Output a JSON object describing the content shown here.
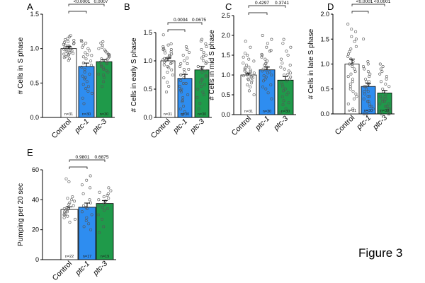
{
  "figure_label": "Figure 3",
  "colors": {
    "control": "#ffffff",
    "ptc1": "#2e8df0",
    "ptc3": "#1f9a4a",
    "stroke": "#000000"
  },
  "chart_data": [
    {
      "type": "bar",
      "panel": "A",
      "ylabel": "# Cells in S phase",
      "categories": [
        "Control",
        "ptc-1",
        "ptc-3"
      ],
      "italic": [
        false,
        true,
        true
      ],
      "values": [
        1.0,
        0.74,
        0.81
      ],
      "errors": [
        0.03,
        0.05,
        0.03
      ],
      "ylim": [
        0,
        1.5
      ],
      "yticks": [
        0.0,
        0.5,
        1.0,
        1.5
      ],
      "ytick_labels": [
        "0.0",
        "0.5",
        "1.0",
        "1.5"
      ],
      "n_labels": [
        "n=31",
        "n=30",
        "n=30"
      ],
      "pvalues": [
        "<0.0001",
        "0.0007"
      ],
      "points": [
        [
          0.83,
          0.85,
          0.87,
          0.88,
          0.9,
          0.91,
          0.92,
          0.93,
          0.94,
          0.95,
          0.96,
          0.97,
          0.98,
          0.99,
          1.0,
          1.0,
          1.01,
          1.02,
          1.03,
          1.04,
          1.05,
          1.06,
          1.07,
          1.08,
          1.09,
          1.1,
          1.12,
          1.13,
          1.15,
          1.17,
          1.19
        ],
        [
          0.2,
          0.28,
          0.35,
          0.42,
          0.48,
          0.52,
          0.56,
          0.6,
          0.63,
          0.66,
          0.7,
          0.73,
          0.76,
          0.79,
          0.82,
          0.85,
          0.88,
          0.91,
          0.94,
          0.97,
          1.0,
          1.02,
          1.05,
          1.08,
          1.1,
          1.12,
          0.58,
          0.45,
          0.38,
          0.9
        ],
        [
          0.45,
          0.52,
          0.58,
          0.62,
          0.66,
          0.7,
          0.72,
          0.74,
          0.76,
          0.78,
          0.8,
          0.82,
          0.84,
          0.86,
          0.88,
          0.9,
          0.92,
          0.94,
          0.96,
          0.98,
          1.0,
          1.02,
          1.05,
          1.08,
          1.1,
          0.68,
          0.79,
          0.85,
          0.91,
          0.63
        ]
      ]
    },
    {
      "type": "bar",
      "panel": "B",
      "ylabel": "# Cells in early S phase",
      "categories": [
        "Control",
        "ptc-1",
        "ptc-3"
      ],
      "italic": [
        false,
        true,
        true
      ],
      "values": [
        1.0,
        0.69,
        0.84
      ],
      "errors": [
        0.05,
        0.07,
        0.06
      ],
      "ylim": [
        0,
        1.5
      ],
      "yticks": [
        0.0,
        0.5,
        1.0,
        1.5
      ],
      "ytick_labels": [
        "0.0",
        "0.5",
        "1.0",
        "1.5"
      ],
      "n_labels": [
        "n=31",
        "n=30",
        "n=30"
      ],
      "pvalues": [
        "0.0004",
        "0.0675"
      ],
      "points": [
        [
          0.45,
          0.55,
          0.62,
          0.7,
          0.75,
          0.8,
          0.84,
          0.88,
          0.9,
          0.93,
          0.95,
          0.97,
          1.0,
          1.02,
          1.04,
          1.06,
          1.08,
          1.1,
          1.12,
          1.14,
          1.16,
          1.18,
          1.2,
          1.22,
          1.25,
          1.28,
          1.3,
          1.2,
          0.98,
          1.05,
          1.46
        ],
        [
          0.05,
          0.1,
          0.15,
          0.2,
          0.28,
          0.35,
          0.4,
          0.45,
          0.5,
          0.55,
          0.6,
          0.65,
          0.7,
          0.75,
          0.8,
          0.85,
          0.9,
          0.95,
          1.0,
          1.05,
          1.1,
          1.15,
          1.2,
          1.25,
          0.3,
          0.6,
          0.75,
          0.85,
          0.95,
          0.48
        ],
        [
          0.15,
          0.25,
          0.35,
          0.45,
          0.55,
          0.62,
          0.68,
          0.74,
          0.8,
          0.85,
          0.9,
          0.95,
          1.0,
          1.05,
          1.1,
          1.15,
          1.2,
          1.25,
          1.3,
          1.35,
          1.38,
          0.4,
          0.58,
          0.72,
          0.88,
          0.98,
          1.08,
          0.82,
          0.66,
          0.5
        ]
      ]
    },
    {
      "type": "bar",
      "panel": "C",
      "ylabel": "# Cells in mid S phase",
      "categories": [
        "Control",
        "ptc-1",
        "ptc-3"
      ],
      "italic": [
        false,
        true,
        true
      ],
      "values": [
        1.0,
        1.13,
        0.87
      ],
      "errors": [
        0.05,
        0.07,
        0.09
      ],
      "ylim": [
        0,
        2.5
      ],
      "yticks": [
        0.0,
        0.5,
        1.0,
        1.5,
        2.0,
        2.5
      ],
      "ytick_labels": [
        "0.0",
        "0.5",
        "1.0",
        "1.5",
        "2.0",
        "2.5"
      ],
      "n_labels": [
        "n=31",
        "n=30",
        "n=30"
      ],
      "pvalues": [
        "0.4297",
        "0.3741"
      ],
      "points": [
        [
          0.5,
          0.6,
          0.7,
          0.75,
          0.8,
          0.85,
          0.88,
          0.9,
          0.93,
          0.95,
          0.98,
          1.0,
          1.02,
          1.05,
          1.08,
          1.1,
          1.12,
          1.15,
          1.18,
          1.2,
          1.25,
          1.3,
          1.35,
          1.4,
          1.45,
          1.5,
          1.55,
          1.7,
          1.85,
          0.95,
          1.05
        ],
        [
          0.4,
          0.55,
          0.65,
          0.75,
          0.85,
          0.9,
          0.95,
          1.0,
          1.05,
          1.1,
          1.15,
          1.2,
          1.25,
          1.3,
          1.35,
          1.4,
          1.45,
          1.5,
          1.6,
          1.7,
          1.8,
          1.9,
          2.0,
          1.12,
          0.98,
          1.28,
          1.52,
          0.7,
          1.08,
          1.62
        ],
        [
          0.05,
          0.15,
          0.25,
          0.35,
          0.45,
          0.55,
          0.65,
          0.75,
          0.85,
          0.9,
          0.95,
          1.0,
          1.05,
          1.1,
          1.15,
          1.2,
          1.3,
          1.4,
          1.5,
          1.6,
          1.7,
          1.8,
          1.9,
          0.6,
          0.8,
          1.25,
          0.5,
          0.3,
          1.02,
          0.7
        ]
      ]
    },
    {
      "type": "bar",
      "panel": "D",
      "ylabel": "# Cells in late S phase",
      "categories": [
        "Control",
        "ptc-1",
        "ptc-3"
      ],
      "italic": [
        false,
        true,
        true
      ],
      "values": [
        1.0,
        0.55,
        0.42
      ],
      "errors": [
        0.1,
        0.06,
        0.05
      ],
      "ylim": [
        0,
        2.0
      ],
      "yticks": [
        0.0,
        0.5,
        1.0,
        1.5,
        2.0
      ],
      "ytick_labels": [
        "0.0",
        "0.5",
        "1.0",
        "1.5",
        "2.0"
      ],
      "n_labels": [
        "n=31",
        "n=30",
        "n=30"
      ],
      "pvalues": [
        "<0.0001",
        "<0.0001"
      ],
      "points": [
        [
          0.1,
          0.2,
          0.3,
          0.35,
          0.45,
          0.5,
          0.6,
          0.65,
          0.7,
          0.75,
          0.8,
          0.85,
          0.9,
          0.95,
          1.0,
          1.05,
          1.1,
          1.15,
          1.2,
          1.3,
          1.35,
          1.45,
          1.5,
          1.55,
          1.65,
          1.7,
          1.8,
          0.4,
          0.55,
          1.25,
          1.0
        ],
        [
          0.0,
          0.0,
          0.05,
          0.1,
          0.15,
          0.2,
          0.25,
          0.3,
          0.35,
          0.4,
          0.45,
          0.5,
          0.55,
          0.6,
          0.65,
          0.7,
          0.75,
          0.8,
          0.85,
          0.9,
          0.95,
          1.0,
          1.05,
          1.5,
          0.35,
          0.45,
          0.55,
          0.65,
          0.25,
          0.15
        ],
        [
          0.0,
          0.0,
          0.0,
          0.05,
          0.05,
          0.1,
          0.1,
          0.15,
          0.15,
          0.2,
          0.2,
          0.25,
          0.3,
          0.35,
          0.4,
          0.45,
          0.5,
          0.55,
          0.6,
          0.65,
          0.7,
          0.75,
          0.8,
          0.85,
          0.9,
          0.95,
          1.0,
          0.3,
          0.25,
          0.35
        ]
      ]
    },
    {
      "type": "bar",
      "panel": "E",
      "ylabel": "Pumping per 20 sec",
      "categories": [
        "Control",
        "ptc-1",
        "ptc-3"
      ],
      "italic": [
        false,
        true,
        true
      ],
      "values": [
        33.5,
        35.0,
        37.5
      ],
      "errors": [
        1.8,
        2.8,
        2.0
      ],
      "ylim": [
        0,
        60
      ],
      "yticks": [
        0,
        20,
        40,
        60
      ],
      "ytick_labels": [
        "0",
        "20",
        "40",
        "60"
      ],
      "n_labels": [
        "n=22",
        "n=17",
        "n=19"
      ],
      "pvalues": [
        "0.9801",
        "0.6875"
      ],
      "points": [
        [
          25,
          27,
          28,
          29,
          30,
          30,
          31,
          32,
          32,
          33,
          34,
          34,
          35,
          36,
          37,
          38,
          39,
          40,
          41,
          42,
          52,
          54
        ],
        [
          20,
          22,
          24,
          26,
          28,
          30,
          32,
          34,
          35,
          36,
          38,
          40,
          44,
          48,
          50,
          53,
          56
        ],
        [
          18,
          22,
          27,
          30,
          33,
          34,
          35,
          36,
          37,
          38,
          39,
          40,
          41,
          42,
          43,
          44,
          45,
          46,
          48
        ]
      ]
    }
  ]
}
